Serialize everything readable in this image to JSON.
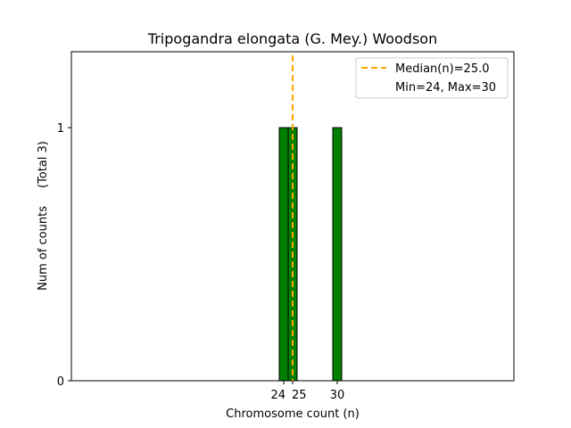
{
  "chart_data": {
    "type": "bar",
    "title": "Tripogandra elongata (G. Mey.) Woodson",
    "xlabel": "Chromosome count (n)",
    "ylabel": "Num of counts",
    "ylabel_total": "(Total 3)",
    "x": [
      24,
      25,
      30
    ],
    "values": [
      1,
      1,
      1
    ],
    "bar_color": "#008000",
    "xticks": [
      "24",
      "25",
      "30"
    ],
    "yticks": [
      "0",
      "1"
    ],
    "xlim": [
      0.2,
      49.8
    ],
    "ylim": [
      0,
      1.3
    ],
    "median": 25.0,
    "median_color": "#FFA500",
    "legend": {
      "position": "top-right",
      "entries": [
        "Median(n)=25.0",
        "Min=24, Max=30"
      ]
    },
    "grid": false
  }
}
